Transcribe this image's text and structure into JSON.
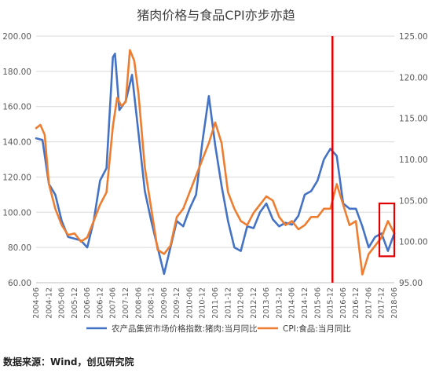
{
  "title": "猪肉价格与食品CPI亦步亦趋",
  "source": "数据来源：Wind，创见研究院",
  "colors": {
    "pork": "#4472c4",
    "cpi": "#ed7d31",
    "marker": "#e00000",
    "grid": "#d9d9d9"
  },
  "chart_data": {
    "type": "line",
    "title": "猪肉价格与食品CPI亦步亦趋",
    "x_ticks": [
      "2004-06",
      "2004-12",
      "2005-06",
      "2005-12",
      "2006-06",
      "2006-12",
      "2007-06",
      "2007-12",
      "2008-06",
      "2008-12",
      "2009-06",
      "2009-12",
      "2010-06",
      "2010-12",
      "2011-06",
      "2011-12",
      "2012-06",
      "2012-12",
      "2013-06",
      "2013-12",
      "2014-06",
      "2014-12",
      "2015-06",
      "2015-12",
      "2016-06",
      "2016-12",
      "2017-06",
      "2017-12",
      "2018-06"
    ],
    "y_left": {
      "min": 60,
      "max": 200,
      "ticks": [
        "60.00",
        "80.00",
        "100.00",
        "120.00",
        "140.00",
        "160.00",
        "180.00",
        "200.00"
      ]
    },
    "y_right": {
      "min": 95,
      "max": 125,
      "ticks": [
        "95.00",
        "100.00",
        "105.00",
        "110.00",
        "115.00",
        "120.00",
        "125.00"
      ]
    },
    "legend_position": "bottom",
    "series": [
      {
        "name": "农产品集贸市场价格指数:猪肉:当月同比",
        "axis": "left",
        "points": [
          [
            "2004-06",
            142
          ],
          [
            "2004-09",
            141
          ],
          [
            "2004-12",
            116
          ],
          [
            "2005-03",
            110
          ],
          [
            "2005-06",
            95
          ],
          [
            "2005-09",
            86
          ],
          [
            "2005-12",
            85
          ],
          [
            "2006-03",
            84
          ],
          [
            "2006-06",
            80
          ],
          [
            "2006-09",
            95
          ],
          [
            "2006-12",
            118
          ],
          [
            "2007-03",
            125
          ],
          [
            "2007-06",
            188
          ],
          [
            "2007-07",
            190
          ],
          [
            "2007-09",
            158
          ],
          [
            "2007-12",
            163
          ],
          [
            "2008-03",
            178
          ],
          [
            "2008-06",
            145
          ],
          [
            "2008-09",
            112
          ],
          [
            "2008-12",
            95
          ],
          [
            "2009-03",
            80
          ],
          [
            "2009-06",
            65
          ],
          [
            "2009-09",
            80
          ],
          [
            "2009-12",
            95
          ],
          [
            "2010-03",
            92
          ],
          [
            "2010-06",
            102
          ],
          [
            "2010-09",
            110
          ],
          [
            "2010-12",
            140
          ],
          [
            "2011-03",
            166
          ],
          [
            "2011-06",
            138
          ],
          [
            "2011-09",
            115
          ],
          [
            "2011-12",
            95
          ],
          [
            "2012-03",
            80
          ],
          [
            "2012-06",
            78
          ],
          [
            "2012-09",
            92
          ],
          [
            "2012-12",
            91
          ],
          [
            "2013-03",
            100
          ],
          [
            "2013-06",
            105
          ],
          [
            "2013-09",
            96
          ],
          [
            "2013-12",
            92
          ],
          [
            "2014-03",
            94
          ],
          [
            "2014-06",
            93
          ],
          [
            "2014-09",
            98
          ],
          [
            "2014-12",
            110
          ],
          [
            "2015-03",
            112
          ],
          [
            "2015-06",
            118
          ],
          [
            "2015-09",
            130
          ],
          [
            "2015-12",
            136
          ],
          [
            "2016-03",
            132
          ],
          [
            "2016-06",
            105
          ],
          [
            "2016-09",
            102
          ],
          [
            "2016-12",
            102
          ],
          [
            "2017-03",
            92
          ],
          [
            "2017-06",
            80
          ],
          [
            "2017-09",
            86
          ],
          [
            "2017-12",
            88
          ],
          [
            "2018-03",
            78
          ],
          [
            "2018-06",
            88
          ]
        ]
      },
      {
        "name": "CPI:食品:当月同比",
        "axis": "right",
        "points": [
          [
            "2004-06",
            113.8
          ],
          [
            "2004-08",
            114.2
          ],
          [
            "2004-10",
            113
          ],
          [
            "2004-12",
            107
          ],
          [
            "2005-03",
            104
          ],
          [
            "2005-06",
            102
          ],
          [
            "2005-09",
            100.8
          ],
          [
            "2005-12",
            101
          ],
          [
            "2006-03",
            100
          ],
          [
            "2006-06",
            100.5
          ],
          [
            "2006-09",
            102.5
          ],
          [
            "2006-12",
            104.5
          ],
          [
            "2007-03",
            106
          ],
          [
            "2007-06",
            114
          ],
          [
            "2007-08",
            117.5
          ],
          [
            "2007-10",
            116.5
          ],
          [
            "2007-12",
            117
          ],
          [
            "2008-02",
            123.3
          ],
          [
            "2008-04",
            122
          ],
          [
            "2008-06",
            118
          ],
          [
            "2008-09",
            109
          ],
          [
            "2008-12",
            104
          ],
          [
            "2009-03",
            99
          ],
          [
            "2009-06",
            98.5
          ],
          [
            "2009-09",
            99.5
          ],
          [
            "2009-12",
            103
          ],
          [
            "2010-03",
            104
          ],
          [
            "2010-06",
            106
          ],
          [
            "2010-09",
            108
          ],
          [
            "2010-12",
            110
          ],
          [
            "2011-03",
            112
          ],
          [
            "2011-06",
            114.5
          ],
          [
            "2011-09",
            112
          ],
          [
            "2011-12",
            106
          ],
          [
            "2012-03",
            104
          ],
          [
            "2012-06",
            102.5
          ],
          [
            "2012-09",
            102
          ],
          [
            "2012-12",
            103.5
          ],
          [
            "2013-03",
            104.5
          ],
          [
            "2013-06",
            105.5
          ],
          [
            "2013-09",
            105
          ],
          [
            "2013-12",
            103
          ],
          [
            "2014-03",
            102
          ],
          [
            "2014-06",
            102.5
          ],
          [
            "2014-09",
            101.5
          ],
          [
            "2014-12",
            102
          ],
          [
            "2015-03",
            103
          ],
          [
            "2015-06",
            103
          ],
          [
            "2015-09",
            104
          ],
          [
            "2015-12",
            104
          ],
          [
            "2016-03",
            107
          ],
          [
            "2016-06",
            104.5
          ],
          [
            "2016-09",
            102
          ],
          [
            "2016-12",
            102.5
          ],
          [
            "2017-03",
            96
          ],
          [
            "2017-06",
            98.5
          ],
          [
            "2017-09",
            99.5
          ],
          [
            "2017-12",
            100.5
          ],
          [
            "2018-03",
            102.5
          ],
          [
            "2018-06",
            101
          ]
        ]
      }
    ],
    "annotations": [
      {
        "type": "vertical-line",
        "x": "2016-01",
        "color": "#e00000"
      },
      {
        "type": "rectangle",
        "x_from": "2017-11",
        "x_to": "2018-06",
        "y_left_from": 75,
        "y_left_to": 105,
        "color": "#e00000"
      }
    ]
  }
}
